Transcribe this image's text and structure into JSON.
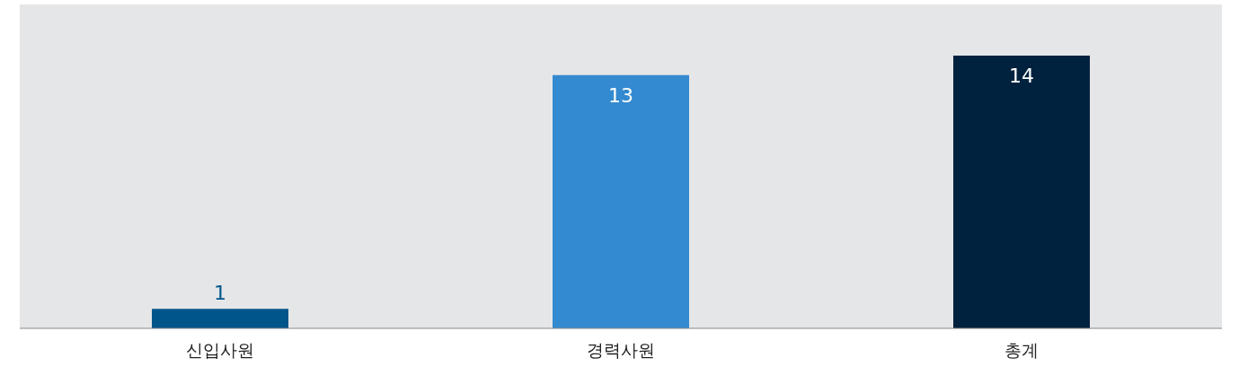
{
  "chart_data": {
    "type": "bar",
    "categories": [
      "신입사원",
      "경력사원",
      "총계"
    ],
    "values": [
      1,
      13,
      14
    ],
    "colors": [
      "#00558a",
      "#348ad0",
      "#00223f"
    ],
    "data_labels": true
  }
}
